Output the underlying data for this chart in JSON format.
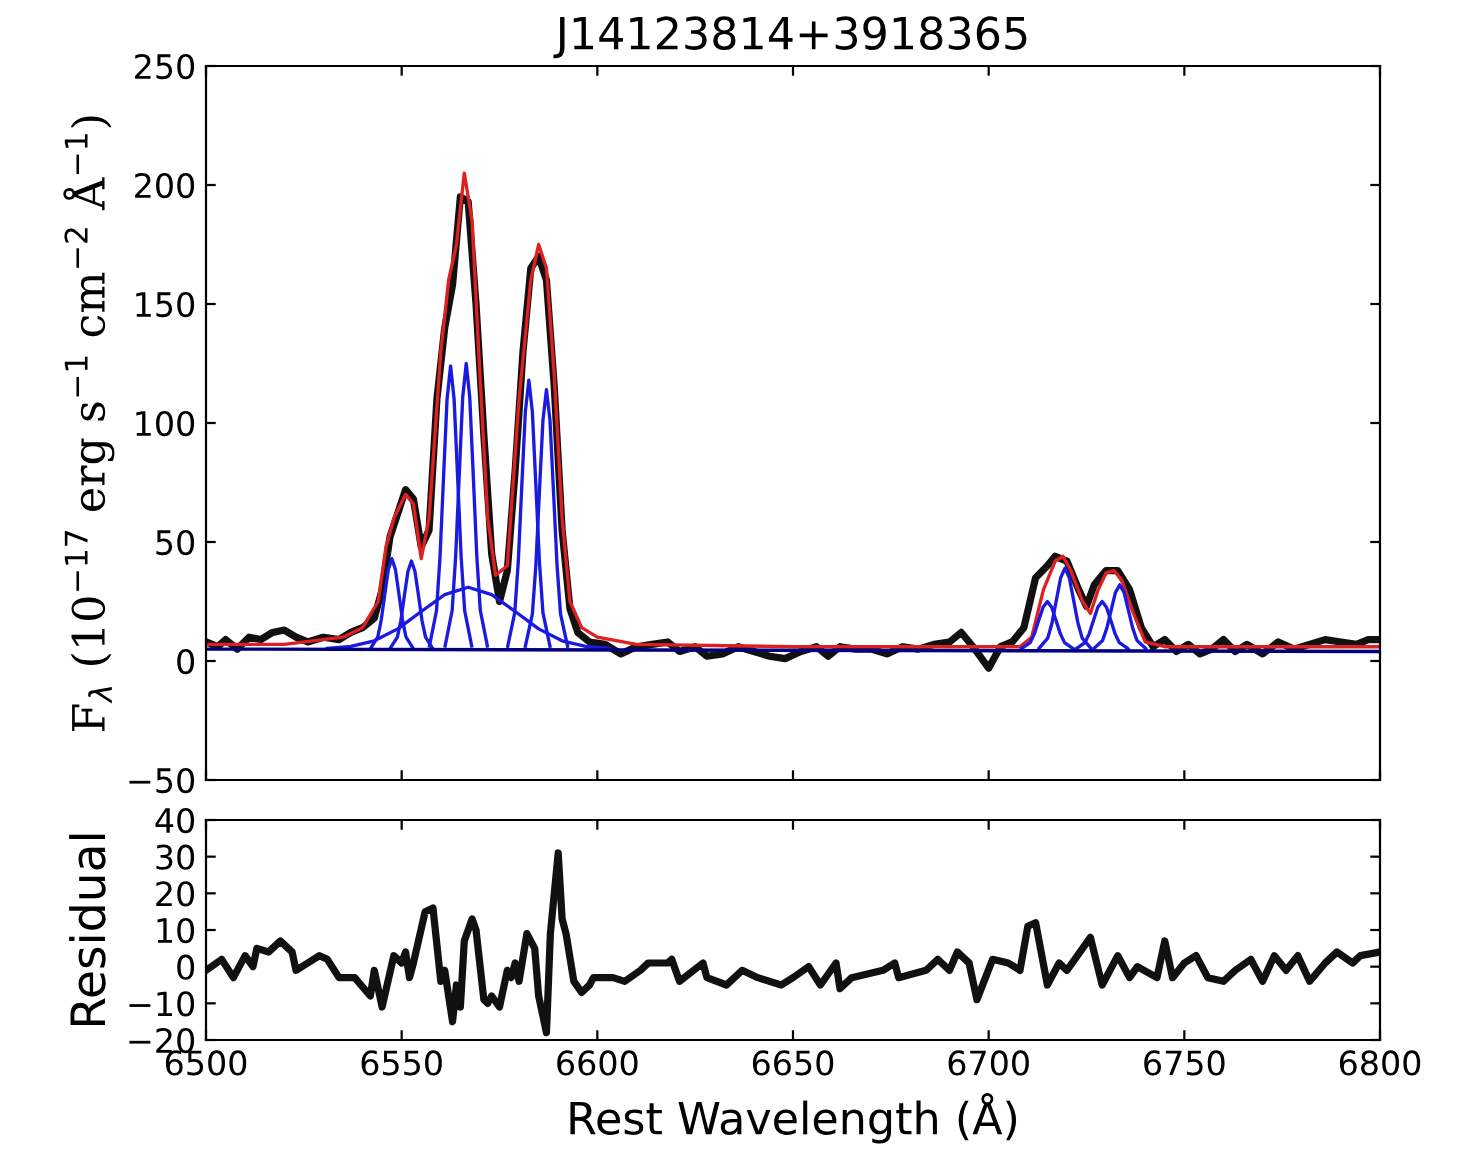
{
  "chart_data": [
    {
      "type": "line",
      "title": "J14123814+3918365",
      "ylabel": "F$_{λ}$ (10$^{−17}$ erg s$^{−1}$ cm$^{−2}$ Å$^{−1}$)",
      "xlim": [
        6500,
        6800
      ],
      "xticks": [
        6500,
        6550,
        6600,
        6650,
        6700,
        6750,
        6800
      ],
      "ylim": [
        -50,
        250
      ],
      "yticks": [
        -50,
        0,
        50,
        100,
        150,
        200,
        250
      ],
      "tick_labels": "y",
      "grid": false,
      "legend": false,
      "marker": "none",
      "line_style": "solid",
      "series": [
        {
          "color": "#111111",
          "x": [
            6500,
            6503,
            6505,
            6508,
            6511,
            6514,
            6517,
            6520,
            6523,
            6526,
            6530,
            6534,
            6537,
            6540,
            6543,
            6545,
            6547,
            6549,
            6551,
            6553,
            6555,
            6557,
            6559,
            6561,
            6563,
            6565,
            6567,
            6569,
            6571,
            6573,
            6575,
            6577,
            6579,
            6581,
            6583,
            6585,
            6587,
            6589,
            6591,
            6593,
            6595,
            6598,
            6602,
            6606,
            6610,
            6614,
            6618,
            6621,
            6625,
            6628,
            6632,
            6636,
            6640,
            6644,
            6648,
            6652,
            6656,
            6659,
            6662,
            6666,
            6670,
            6674,
            6678,
            6682,
            6686,
            6690,
            6693,
            6696,
            6700,
            6703,
            6706,
            6709,
            6712,
            6715,
            6717,
            6720,
            6723,
            6725,
            6727,
            6730,
            6733,
            6736,
            6739,
            6742,
            6745,
            6748,
            6751,
            6754,
            6757,
            6760,
            6763,
            6766,
            6770,
            6774,
            6778,
            6782,
            6786,
            6790,
            6794,
            6797,
            6800
          ],
          "values": [
            8,
            6,
            9,
            5,
            10,
            9,
            12,
            13,
            10,
            8,
            10,
            9,
            12,
            14,
            18,
            30,
            52,
            62,
            72,
            68,
            48,
            55,
            110,
            140,
            158,
            195,
            193,
            150,
            95,
            45,
            25,
            38,
            80,
            130,
            165,
            170,
            160,
            115,
            55,
            22,
            12,
            8,
            7,
            3,
            6,
            7,
            8,
            4,
            6,
            2,
            3,
            6,
            4,
            2,
            1,
            4,
            6,
            2,
            6,
            5,
            5,
            3,
            6,
            5,
            7,
            8,
            12,
            6,
            -3,
            6,
            8,
            14,
            35,
            40,
            44,
            42,
            30,
            23,
            32,
            38,
            38,
            30,
            14,
            6,
            9,
            4,
            7,
            3,
            5,
            9,
            4,
            7,
            3,
            8,
            5,
            7,
            9,
            8,
            7,
            9,
            9
          ]
        },
        {
          "color": "#dd2020",
          "x": [
            6500,
            6520,
            6535,
            6540,
            6544,
            6546,
            6548,
            6551,
            6553,
            6555,
            6557,
            6560,
            6562,
            6564,
            6566,
            6568,
            6570,
            6572,
            6574,
            6577,
            6580,
            6583,
            6585,
            6587,
            6589,
            6591,
            6593,
            6596,
            6600,
            6610,
            6650,
            6700,
            6708,
            6711,
            6714,
            6717,
            6719,
            6721,
            6724,
            6726,
            6728,
            6730,
            6732,
            6734,
            6737,
            6740,
            6745,
            6800
          ],
          "values": [
            7,
            7,
            10,
            14,
            25,
            48,
            60,
            70,
            66,
            43,
            60,
            130,
            160,
            175,
            205,
            185,
            120,
            60,
            36,
            40,
            110,
            160,
            175,
            165,
            120,
            60,
            25,
            14,
            10,
            7,
            6,
            6,
            6,
            10,
            30,
            42,
            44,
            38,
            25,
            20,
            30,
            37,
            38,
            34,
            20,
            8,
            6,
            6
          ]
        },
        {
          "color": "#1a1ae0",
          "x": [
            6542.1,
            6543.9,
            6544.8,
            6545.7,
            6546.6,
            6547.5,
            6548.4,
            6549.3,
            6550.2,
            6551.1,
            6552.9
          ],
          "values": [
            5.4,
            10.1,
            17.4,
            28.1,
            38.5,
            43,
            38.5,
            28.1,
            17.4,
            10.1,
            5.4
          ]
        },
        {
          "color": "#1a1ae0",
          "x": [
            6547.1,
            6548.9,
            6549.8,
            6550.7,
            6551.6,
            6552.5,
            6553.4,
            6554.3,
            6555.2,
            6556.1,
            6557.9
          ],
          "values": [
            5.4,
            10,
            17,
            27.5,
            37.6,
            42,
            37.6,
            27.5,
            17,
            10,
            5.4
          ]
        },
        {
          "color": "#1a1ae0",
          "x": [
            6557.1,
            6558.9,
            6559.8,
            6560.7,
            6561.6,
            6562.5,
            6563.4,
            6564.3,
            6565.2,
            6566.1,
            6567.9
          ],
          "values": [
            6.3,
            21.1,
            43.7,
            77.2,
            110,
            124,
            110,
            77.2,
            43.7,
            21.1,
            6.3
          ]
        },
        {
          "color": "#1a1ae0",
          "x": [
            6561.1,
            6562.9,
            6563.8,
            6564.7,
            6565.6,
            6566.5,
            6567.4,
            6568.3,
            6569.2,
            6570.1,
            6571.9
          ],
          "values": [
            6.3,
            21.2,
            44,
            77.8,
            110.8,
            125,
            110.8,
            77.8,
            44,
            21.2,
            6.3
          ]
        },
        {
          "color": "#1a1ae0",
          "x": [
            6577.1,
            6578.9,
            6579.8,
            6580.7,
            6581.6,
            6582.5,
            6583.4,
            6584.3,
            6585.2,
            6586.1,
            6587.9
          ],
          "values": [
            6.2,
            20.3,
            41.7,
            73.6,
            104.7,
            118,
            104.7,
            73.6,
            41.7,
            20.3,
            6.2
          ]
        },
        {
          "color": "#1a1ae0",
          "x": [
            6581.6,
            6583.4,
            6584.3,
            6585.2,
            6586.1,
            6587,
            6587.9,
            6588.8,
            6589.7,
            6590.6,
            6592.4
          ],
          "values": [
            6.2,
            19.7,
            40.4,
            71.2,
            101.1,
            114,
            101.1,
            71.2,
            40.4,
            19.7,
            6.2
          ]
        },
        {
          "color": "#1a1ae0",
          "x": [
            6531,
            6537,
            6543,
            6549,
            6555,
            6561,
            6567,
            6573,
            6579,
            6585,
            6591,
            6597,
            6603
          ],
          "values": [
            5.3,
            6.1,
            8.5,
            13.5,
            20.8,
            27.9,
            31,
            27.9,
            20.8,
            13.5,
            8.5,
            6.1,
            5.3
          ]
        },
        {
          "color": "#1a1ae0",
          "x": [
            6708.4,
            6710.6,
            6711.7,
            6712.8,
            6713.9,
            6715,
            6716.1,
            6717.2,
            6718.3,
            6719.4,
            6721.6
          ],
          "values": [
            5.2,
            7.7,
            11.5,
            17.1,
            22.6,
            25,
            22.6,
            17.1,
            11.5,
            7.7,
            5.2
          ]
        },
        {
          "color": "#1a1ae0",
          "x": [
            6712.9,
            6715.1,
            6716.2,
            6717.3,
            6718.4,
            6719.5,
            6720.6,
            6721.7,
            6722.8,
            6723.9,
            6726.1
          ],
          "values": [
            5.4,
            9.6,
            16.1,
            25.6,
            35,
            39,
            35,
            25.6,
            16.1,
            9.6,
            5.4
          ]
        },
        {
          "color": "#1a1ae0",
          "x": [
            6722.4,
            6724.6,
            6725.7,
            6726.8,
            6727.9,
            6729,
            6730.1,
            6731.2,
            6732.3,
            6733.4,
            6735.6
          ],
          "values": [
            5.2,
            7.7,
            11.5,
            17.1,
            22.6,
            25,
            22.6,
            17.1,
            11.5,
            7.7,
            5.2
          ]
        },
        {
          "color": "#1a1ae0",
          "x": [
            6726.9,
            6729.1,
            6730.2,
            6731.3,
            6732.4,
            6733.5,
            6734.6,
            6735.7,
            6736.8,
            6737.9,
            6740.1
          ],
          "values": [
            5.3,
            8.6,
            13.8,
            21.4,
            28.8,
            32,
            28.8,
            21.4,
            13.8,
            8.6,
            5.3
          ]
        },
        {
          "color": "#000080",
          "x": [
            6500,
            6800
          ],
          "values": [
            5,
            4
          ]
        }
      ]
    },
    {
      "type": "line",
      "xlabel": "Rest Wavelength (Å)",
      "ylabel": "Residual",
      "xlim": [
        6500,
        6800
      ],
      "xticks": [
        6500,
        6550,
        6600,
        6650,
        6700,
        6750,
        6800
      ],
      "ylim": [
        -20,
        40
      ],
      "yticks": [
        -20,
        -10,
        0,
        10,
        20,
        30,
        40
      ],
      "grid": false,
      "legend": false,
      "marker": "none",
      "line_style": "solid",
      "series": [
        {
          "color": "#111111",
          "x": [
            6500,
            6504,
            6507,
            6510,
            6512,
            6513,
            6516,
            6519,
            6522,
            6523,
            6526,
            6529,
            6531,
            6534,
            6538,
            6542,
            6543,
            6545,
            6548,
            6550,
            6551,
            6552,
            6553,
            6556,
            6558,
            6560,
            6561,
            6563,
            6564,
            6565,
            6566,
            6568,
            6569,
            6571,
            6572,
            6573,
            6575,
            6577,
            6578,
            6579,
            6580,
            6582,
            6584,
            6585,
            6587,
            6588,
            6590,
            6591,
            6592,
            6594,
            6596,
            6598,
            6599,
            6604,
            6607,
            6611,
            6613,
            6618,
            6619,
            6621,
            6627,
            6628,
            6633,
            6637,
            6641,
            6647,
            6650,
            6654,
            6657,
            6661,
            6662,
            6665,
            6673,
            6676,
            6677,
            6684,
            6687,
            6690,
            6692,
            6695,
            6697,
            6701,
            6705,
            6708,
            6710,
            6712,
            6715,
            6718,
            6720,
            6724,
            6726,
            6729,
            6733,
            6736,
            6738,
            6743,
            6745,
            6747,
            6750,
            6753,
            6756,
            6760,
            6763,
            6767,
            6770,
            6773,
            6776,
            6779,
            6782,
            6786,
            6789,
            6793,
            6795,
            6800
          ],
          "values": [
            -1,
            2,
            -3,
            3,
            0,
            5,
            4,
            7,
            4,
            -1,
            1,
            3,
            2,
            -3,
            -3,
            -8,
            -1,
            -11,
            3,
            1,
            4,
            -3,
            1,
            15,
            16,
            -4,
            -1,
            -15,
            -5,
            -11,
            7,
            13,
            10,
            -9,
            -10,
            -8,
            -11,
            -1,
            -3,
            1,
            -4,
            9,
            5,
            -8,
            -18,
            9,
            31,
            13,
            9,
            -4,
            -7,
            -5,
            -3,
            -3,
            -4,
            -1,
            1,
            1,
            2,
            -4,
            1,
            -3,
            -5,
            -1,
            -3,
            -5,
            -3,
            0,
            -5,
            1,
            -6,
            -3,
            -1,
            1,
            -3,
            -1,
            2,
            -1,
            4,
            1,
            -9,
            2,
            1,
            -1,
            11,
            12,
            -5,
            1,
            -1,
            5,
            8,
            -5,
            3,
            -3,
            0,
            -3,
            7,
            -3,
            1,
            3,
            -3,
            -4,
            -1,
            2,
            -4,
            3,
            -1,
            3,
            -4,
            1,
            4,
            1,
            3,
            4
          ]
        }
      ]
    }
  ]
}
